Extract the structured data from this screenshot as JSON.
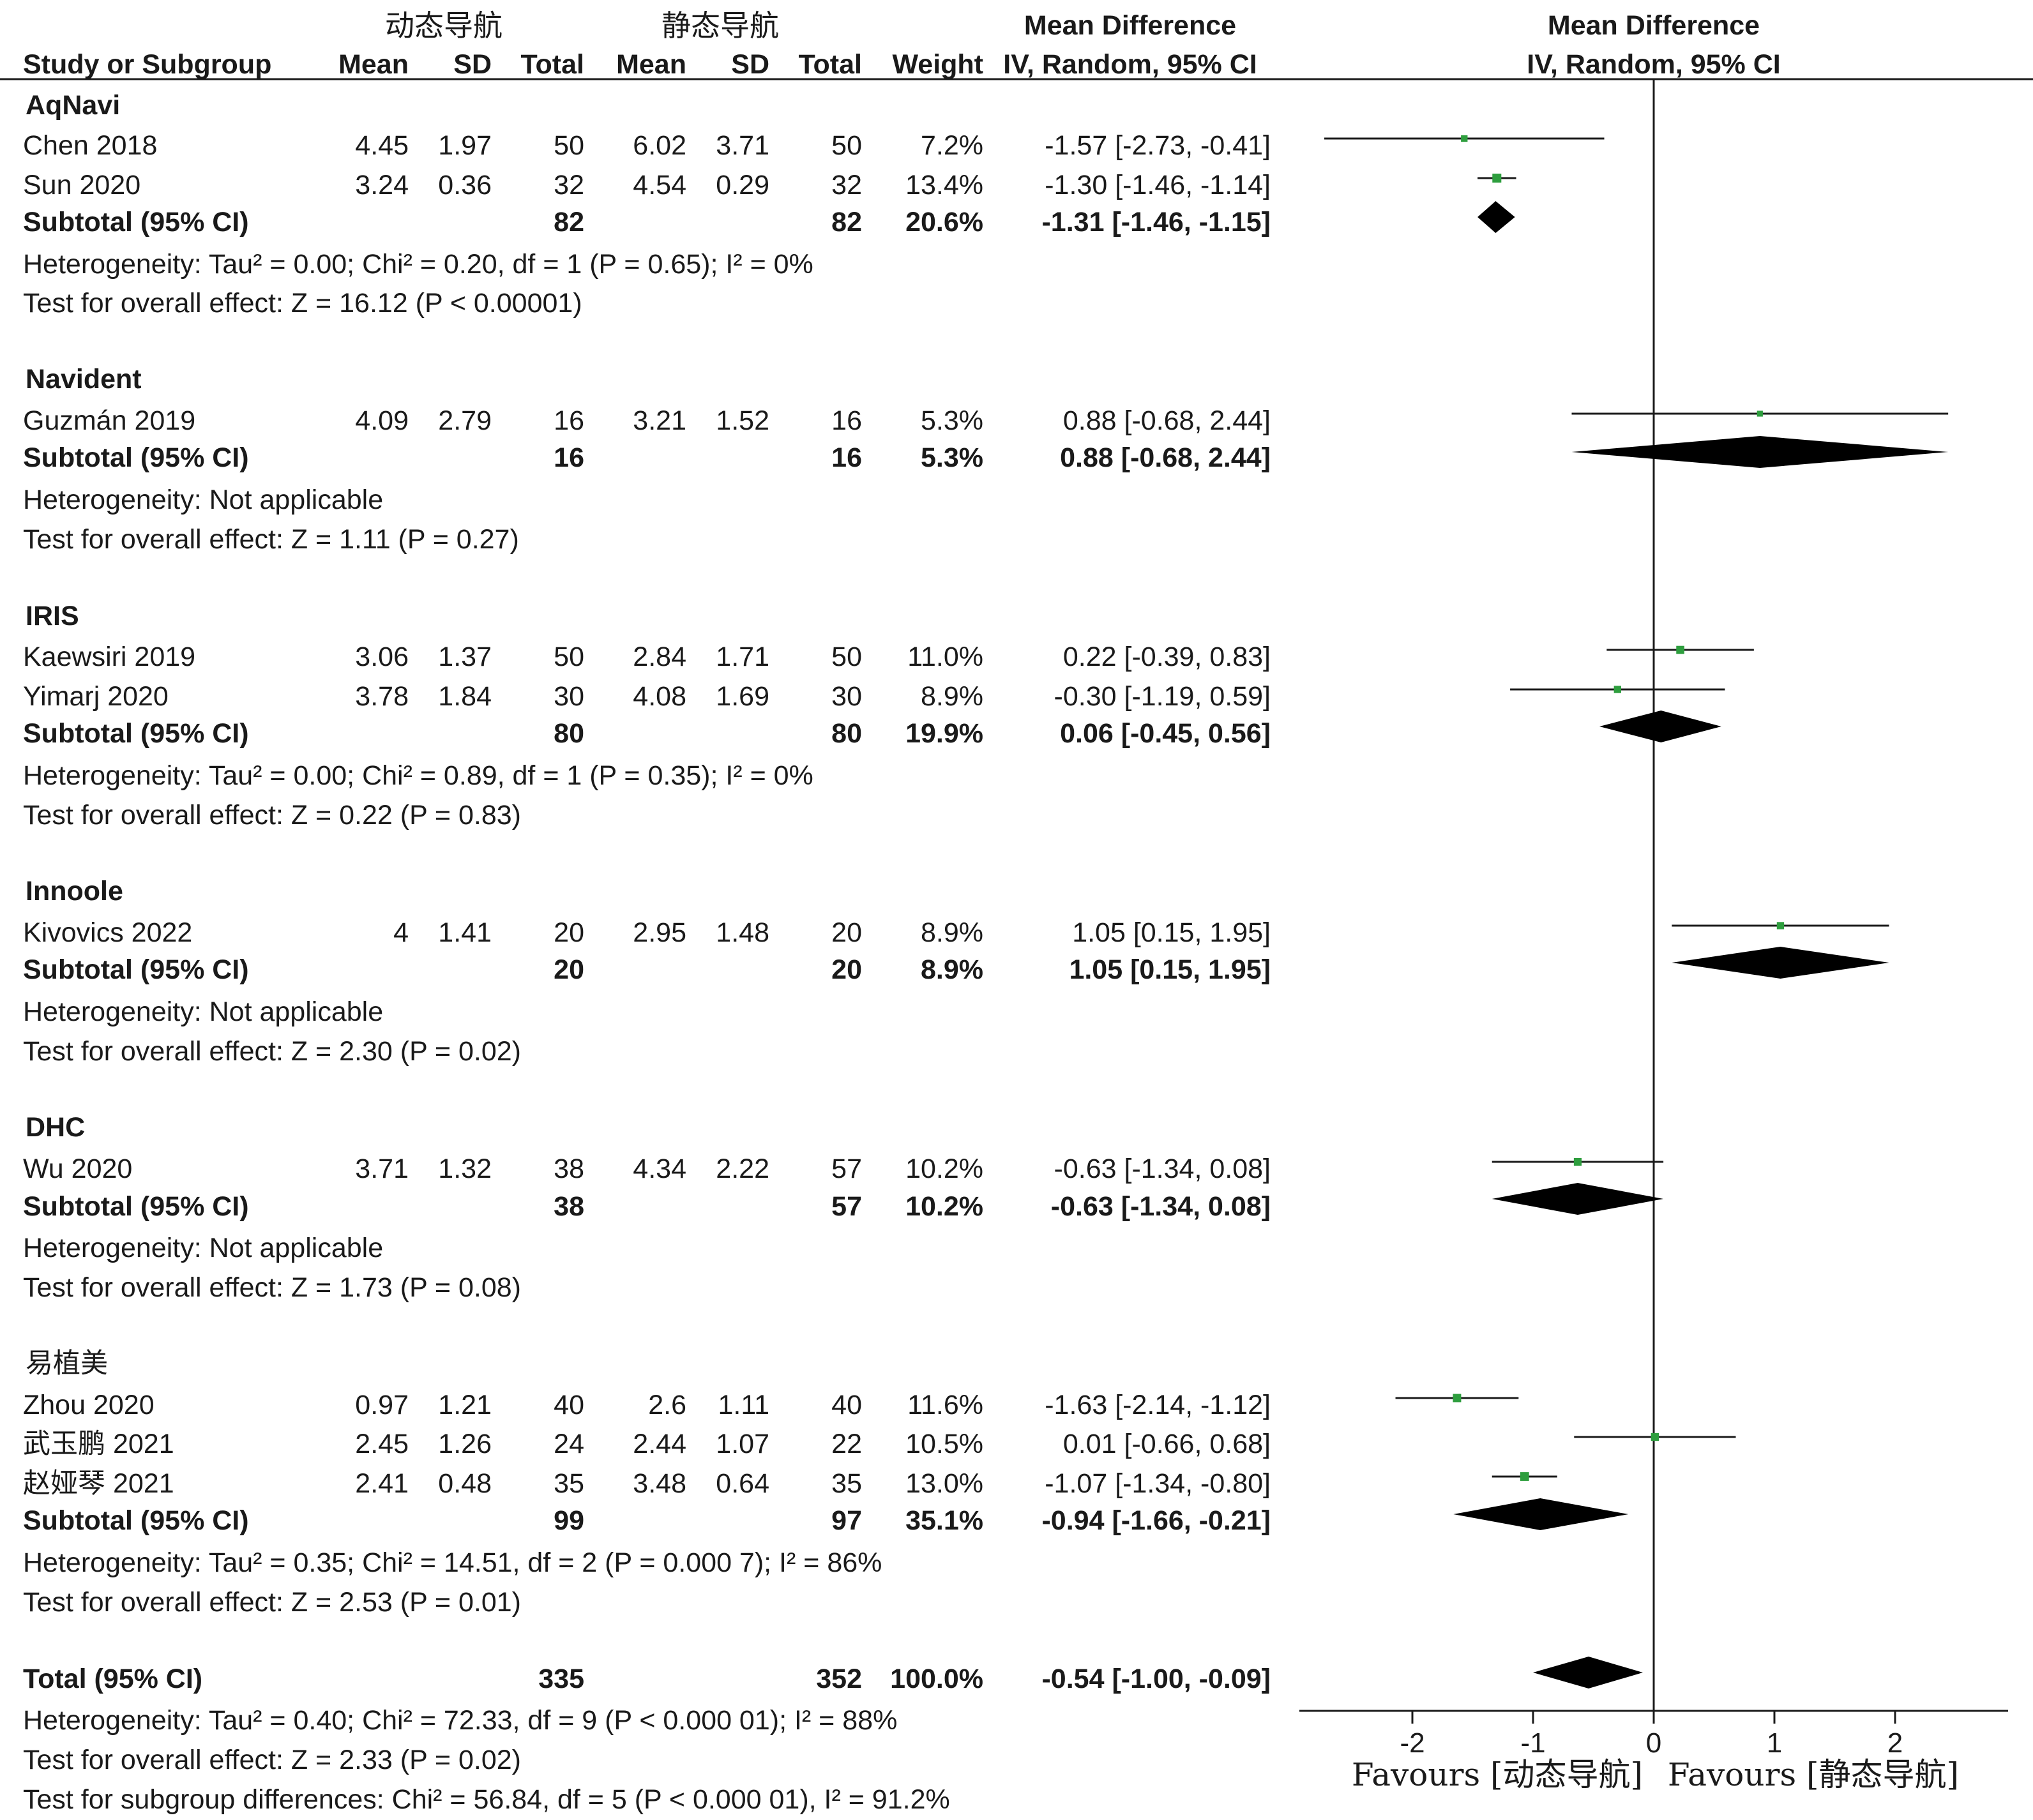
{
  "header": {
    "exp_group": "动态导航",
    "ctrl_group": "静态导航",
    "md_title": "Mean Difference",
    "md_sub": "IV, Random, 95% CI",
    "plot_title": "Mean Difference",
    "plot_sub": "IV, Random, 95% CI",
    "study_col": "Study or Subgroup",
    "mean": "Mean",
    "sd": "SD",
    "total": "Total",
    "weight": "Weight"
  },
  "groups": [
    {
      "name": "AqNavi",
      "studies": [
        {
          "name": "Chen 2018",
          "m1": "4.45",
          "sd1": "1.97",
          "n1": "50",
          "m2": "6.02",
          "sd2": "3.71",
          "n2": "50",
          "w": "7.2%",
          "ci": "-1.57 [-2.73, -0.41]"
        },
        {
          "name": "Sun 2020",
          "m1": "3.24",
          "sd1": "0.36",
          "n1": "32",
          "m2": "4.54",
          "sd2": "0.29",
          "n2": "32",
          "w": "13.4%",
          "ci": "-1.30 [-1.46, -1.14]"
        }
      ],
      "subtotal": {
        "label": "Subtotal (95% CI)",
        "n1": "82",
        "n2": "82",
        "w": "20.6%",
        "ci": "-1.31 [-1.46, -1.15]"
      },
      "het": "Heterogeneity: Tau² = 0.00; Chi² = 0.20, df = 1 (P = 0.65); I² = 0%",
      "test": "Test for overall effect: Z = 16.12 (P < 0.00001)"
    },
    {
      "name": "Navident",
      "studies": [
        {
          "name": "Guzmán 2019",
          "m1": "4.09",
          "sd1": "2.79",
          "n1": "16",
          "m2": "3.21",
          "sd2": "1.52",
          "n2": "16",
          "w": "5.3%",
          "ci": "0.88 [-0.68, 2.44]"
        }
      ],
      "subtotal": {
        "label": "Subtotal (95% CI)",
        "n1": "16",
        "n2": "16",
        "w": "5.3%",
        "ci": "0.88 [-0.68, 2.44]"
      },
      "het": "Heterogeneity: Not applicable",
      "test": "Test for overall effect: Z = 1.11 (P = 0.27)"
    },
    {
      "name": "IRIS",
      "studies": [
        {
          "name": "Kaewsiri 2019",
          "m1": "3.06",
          "sd1": "1.37",
          "n1": "50",
          "m2": "2.84",
          "sd2": "1.71",
          "n2": "50",
          "w": "11.0%",
          "ci": "0.22 [-0.39, 0.83]"
        },
        {
          "name": "Yimarj  2020",
          "m1": "3.78",
          "sd1": "1.84",
          "n1": "30",
          "m2": "4.08",
          "sd2": "1.69",
          "n2": "30",
          "w": "8.9%",
          "ci": "-0.30 [-1.19, 0.59]"
        }
      ],
      "subtotal": {
        "label": "Subtotal (95% CI)",
        "n1": "80",
        "n2": "80",
        "w": "19.9%",
        "ci": "0.06 [-0.45, 0.56]"
      },
      "het": "Heterogeneity: Tau² = 0.00; Chi² = 0.89, df = 1 (P = 0.35); I² = 0%",
      "test": "Test for overall effect: Z = 0.22 (P = 0.83)"
    },
    {
      "name": "Innoole",
      "studies": [
        {
          "name": "Kivovics 2022",
          "m1": "4",
          "sd1": "1.41",
          "n1": "20",
          "m2": "2.95",
          "sd2": "1.48",
          "n2": "20",
          "w": "8.9%",
          "ci": "1.05 [0.15, 1.95]"
        }
      ],
      "subtotal": {
        "label": "Subtotal (95% CI)",
        "n1": "20",
        "n2": "20",
        "w": "8.9%",
        "ci": "1.05 [0.15, 1.95]"
      },
      "het": "Heterogeneity: Not applicable",
      "test": "Test for overall effect: Z = 2.30 (P = 0.02)"
    },
    {
      "name": "DHC",
      "studies": [
        {
          "name": "Wu 2020",
          "m1": "3.71",
          "sd1": "1.32",
          "n1": "38",
          "m2": "4.34",
          "sd2": "2.22",
          "n2": "57",
          "w": "10.2%",
          "ci": "-0.63 [-1.34, 0.08]"
        }
      ],
      "subtotal": {
        "label": "Subtotal (95% CI)",
        "n1": "38",
        "n2": "57",
        "w": "10.2%",
        "ci": "-0.63 [-1.34, 0.08]"
      },
      "het": "Heterogeneity: Not applicable",
      "test": "Test for overall effect: Z = 1.73 (P = 0.08)"
    },
    {
      "name": "易植美",
      "studies": [
        {
          "name": "Zhou 2020",
          "m1": "0.97",
          "sd1": "1.21",
          "n1": "40",
          "m2": "2.6",
          "sd2": "1.11",
          "n2": "40",
          "w": "11.6%",
          "ci": "-1.63 [-2.14, -1.12]"
        },
        {
          "name": "武玉鹏 2021",
          "m1": "2.45",
          "sd1": "1.26",
          "n1": "24",
          "m2": "2.44",
          "sd2": "1.07",
          "n2": "22",
          "w": "10.5%",
          "ci": "0.01 [-0.66, 0.68]"
        },
        {
          "name": "赵娅琴 2021",
          "m1": "2.41",
          "sd1": "0.48",
          "n1": "35",
          "m2": "3.48",
          "sd2": "0.64",
          "n2": "35",
          "w": "13.0%",
          "ci": "-1.07 [-1.34, -0.80]"
        }
      ],
      "subtotal": {
        "label": "Subtotal (95% CI)",
        "n1": "99",
        "n2": "97",
        "w": "35.1%",
        "ci": "-0.94 [-1.66, -0.21]"
      },
      "het": "Heterogeneity: Tau² = 0.35; Chi² = 14.51, df = 2 (P = 0.000 7); I² = 86%",
      "test": "Test for overall effect: Z = 2.53 (P = 0.01)"
    }
  ],
  "total": {
    "label": "Total (95% CI)",
    "n1": "335",
    "n2": "352",
    "w": "100.0%",
    "ci": "-0.54 [-1.00, -0.09]"
  },
  "footer": {
    "het": "Heterogeneity: Tau² = 0.40; Chi² = 72.33, df = 9 (P < 0.000 01); I² = 88%",
    "test": "Test for overall effect: Z = 2.33 (P = 0.02)",
    "subgroup": "Test for subgroup differences: Chi² = 56.84, df = 5 (P < 0.000 01), I² = 91.2%"
  },
  "axis": {
    "favours_left": "Favours [动态导航]",
    "favours_right": "Favours [静态导航]"
  },
  "colors": {
    "square": "#2e9e3e",
    "line": "#1a1a1a",
    "diamond": "#000000"
  },
  "chart_data": {
    "type": "scatter",
    "subtype": "forest",
    "xlim": [
      -2.95,
      2.95
    ],
    "xticks": [
      "-2",
      "-1",
      "0",
      "1",
      "2"
    ],
    "studies": [
      {
        "name": "Chen 2018",
        "md": -1.57,
        "lo": -2.73,
        "hi": -0.41,
        "weight": 7.2
      },
      {
        "name": "Sun 2020",
        "md": -1.3,
        "lo": -1.46,
        "hi": -1.14,
        "weight": 13.4
      },
      {
        "name": "Guzmán 2019",
        "md": 0.88,
        "lo": -0.68,
        "hi": 2.44,
        "weight": 5.3
      },
      {
        "name": "Kaewsiri 2019",
        "md": 0.22,
        "lo": -0.39,
        "hi": 0.83,
        "weight": 11.0
      },
      {
        "name": "Yimarj  2020",
        "md": -0.3,
        "lo": -1.19,
        "hi": 0.59,
        "weight": 8.9
      },
      {
        "name": "Kivovics 2022",
        "md": 1.05,
        "lo": 0.15,
        "hi": 1.95,
        "weight": 8.9
      },
      {
        "name": "Wu 2020",
        "md": -0.63,
        "lo": -1.34,
        "hi": 0.08,
        "weight": 10.2
      },
      {
        "name": "Zhou 2020",
        "md": -1.63,
        "lo": -2.14,
        "hi": -1.12,
        "weight": 11.6
      },
      {
        "name": "武玉鹏 2021",
        "md": 0.01,
        "lo": -0.66,
        "hi": 0.68,
        "weight": 10.5
      },
      {
        "name": "赵娅琴 2021",
        "md": -1.07,
        "lo": -1.34,
        "hi": -0.8,
        "weight": 13.0
      }
    ],
    "pooled": [
      {
        "name": "AqNavi",
        "md": -1.31,
        "lo": -1.46,
        "hi": -1.15
      },
      {
        "name": "Navident",
        "md": 0.88,
        "lo": -0.68,
        "hi": 2.44
      },
      {
        "name": "IRIS",
        "md": 0.06,
        "lo": -0.45,
        "hi": 0.56
      },
      {
        "name": "Innoole",
        "md": 1.05,
        "lo": 0.15,
        "hi": 1.95
      },
      {
        "name": "DHC",
        "md": -0.63,
        "lo": -1.34,
        "hi": 0.08
      },
      {
        "name": "易植美",
        "md": -0.94,
        "lo": -1.66,
        "hi": -0.21
      },
      {
        "name": "Total",
        "md": -0.54,
        "lo": -1.0,
        "hi": -0.09
      }
    ]
  }
}
